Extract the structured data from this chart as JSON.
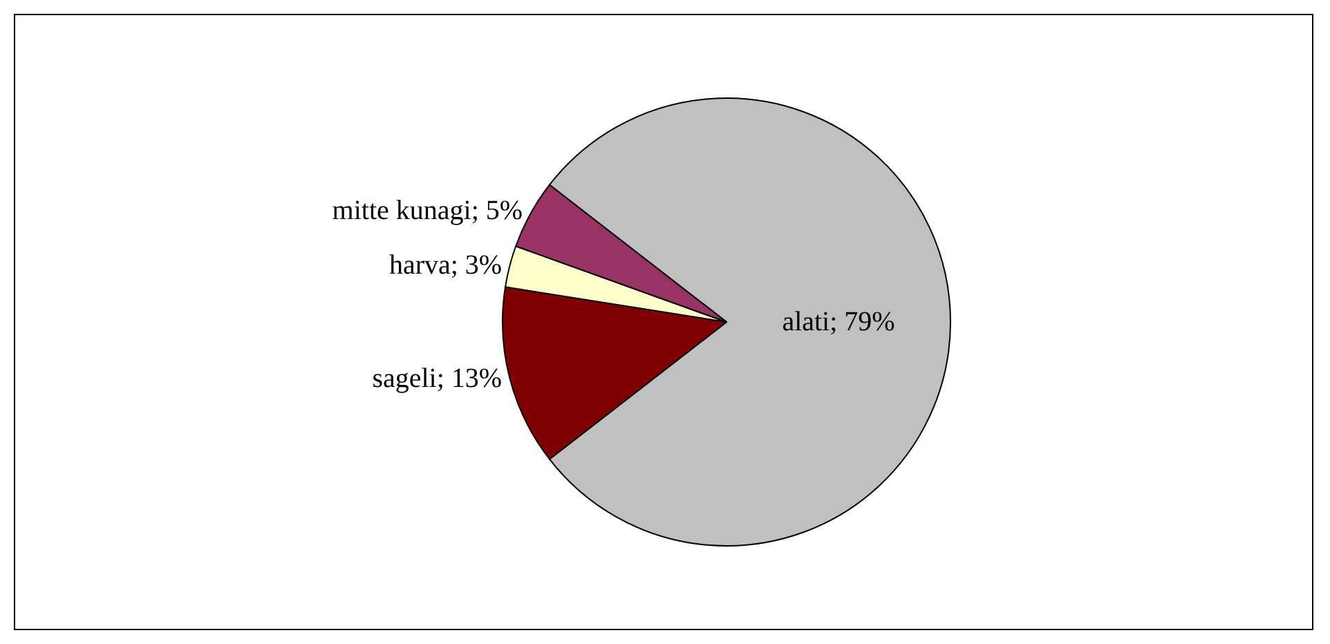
{
  "chart_data": {
    "type": "pie",
    "categories": [
      "alati",
      "sageli",
      "harva",
      "mitte kunagi"
    ],
    "values": [
      79,
      13,
      3,
      5
    ],
    "colors": [
      "#c0c0c0",
      "#800000",
      "#ffffcc",
      "#993366"
    ],
    "value_labels": [
      "79%",
      "13%",
      "3%",
      "5%"
    ],
    "legend": false
  }
}
